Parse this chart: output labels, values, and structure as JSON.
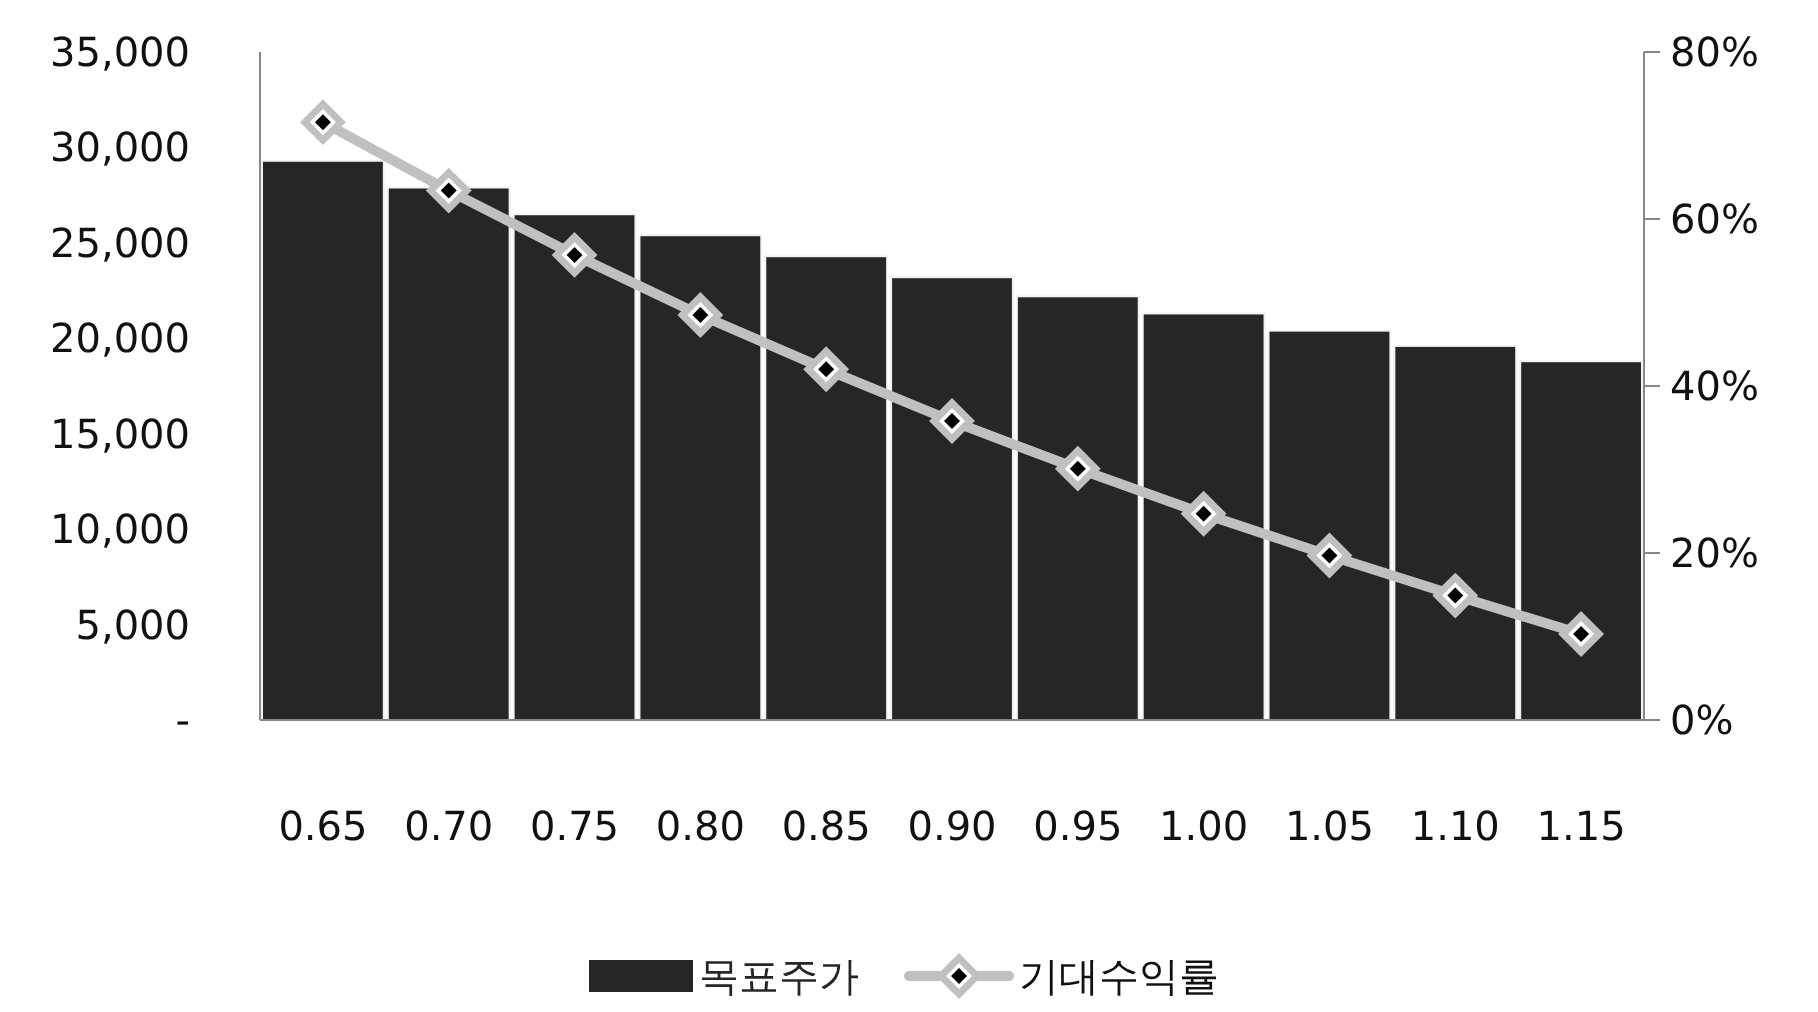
{
  "chart_data": {
    "type": "bar",
    "categories": [
      "0.65",
      "0.70",
      "0.75",
      "0.80",
      "0.85",
      "0.90",
      "0.95",
      "1.00",
      "1.05",
      "1.10",
      "1.15"
    ],
    "series": [
      {
        "name": "목표주가",
        "color": "#262626",
        "values": [
          29300,
          27900,
          26500,
          25400,
          24300,
          23200,
          22200,
          21300,
          20400,
          19600,
          18800
        ]
      },
      {
        "name": "기대수익률",
        "type": "line",
        "axis": "y2",
        "color": "#c0c0c0",
        "marker": "diamond",
        "values": [
          71.6,
          63.4,
          55.7,
          48.5,
          42.0,
          35.8,
          30.1,
          24.7,
          19.7,
          14.9,
          10.3
        ]
      }
    ],
    "ylim": [
      0,
      35000
    ],
    "yticks": [
      {
        "value": 0,
        "label": "-"
      },
      {
        "value": 5000,
        "label": "5,000"
      },
      {
        "value": 10000,
        "label": "10,000"
      },
      {
        "value": 15000,
        "label": "15,000"
      },
      {
        "value": 20000,
        "label": "20,000"
      },
      {
        "value": 25000,
        "label": "25,000"
      },
      {
        "value": 30000,
        "label": "30,000"
      },
      {
        "value": 35000,
        "label": "35,000"
      }
    ],
    "y2lim": [
      0,
      80
    ],
    "y2ticks": [
      {
        "value": 0,
        "label": "0%"
      },
      {
        "value": 20,
        "label": "20%"
      },
      {
        "value": 40,
        "label": "40%"
      },
      {
        "value": 60,
        "label": "60%"
      },
      {
        "value": 80,
        "label": "80%"
      }
    ],
    "grid": false,
    "legend": "bottom"
  }
}
